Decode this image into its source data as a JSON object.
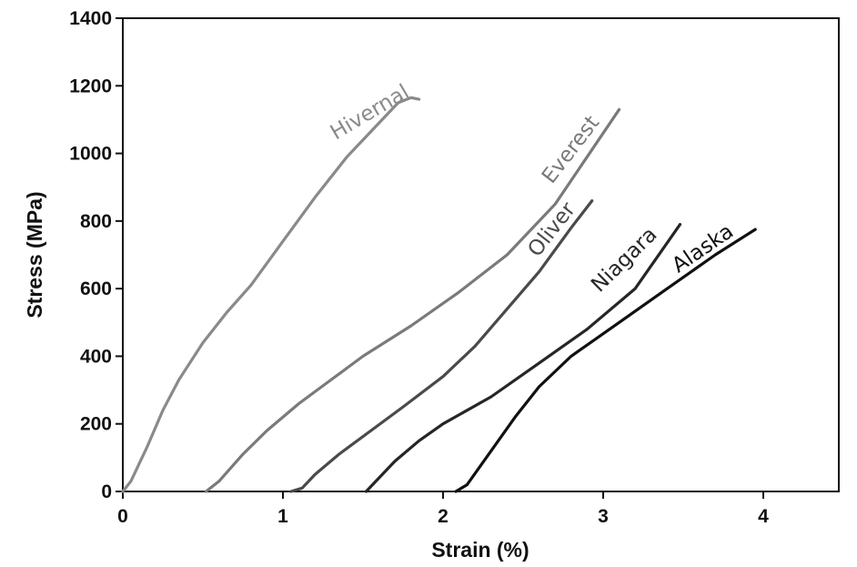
{
  "chart_data": {
    "type": "line",
    "title": "",
    "xlabel": "Strain (%)",
    "ylabel": "Stress (MPa)",
    "xlim": [
      0,
      4.5
    ],
    "ylim": [
      0,
      1400
    ],
    "xticks": [
      0,
      1,
      2,
      3,
      4
    ],
    "yticks": [
      0,
      200,
      400,
      600,
      800,
      1000,
      1200,
      1400
    ],
    "grid": false,
    "legend": "none",
    "series": [
      {
        "name": "Hivernal",
        "color": "#8a8a8a",
        "points": [
          [
            0.0,
            0
          ],
          [
            0.05,
            30
          ],
          [
            0.15,
            130
          ],
          [
            0.25,
            240
          ],
          [
            0.35,
            330
          ],
          [
            0.5,
            440
          ],
          [
            0.65,
            530
          ],
          [
            0.8,
            610
          ],
          [
            1.0,
            740
          ],
          [
            1.2,
            870
          ],
          [
            1.4,
            990
          ],
          [
            1.6,
            1090
          ],
          [
            1.72,
            1150
          ],
          [
            1.8,
            1165
          ],
          [
            1.85,
            1160
          ]
        ]
      },
      {
        "name": "Everest",
        "color": "#7a7a7a",
        "points": [
          [
            0.52,
            0
          ],
          [
            0.6,
            30
          ],
          [
            0.75,
            110
          ],
          [
            0.9,
            180
          ],
          [
            1.1,
            260
          ],
          [
            1.3,
            330
          ],
          [
            1.5,
            400
          ],
          [
            1.8,
            490
          ],
          [
            2.1,
            590
          ],
          [
            2.4,
            700
          ],
          [
            2.7,
            850
          ],
          [
            2.9,
            990
          ],
          [
            3.1,
            1130
          ]
        ]
      },
      {
        "name": "Oliver",
        "color": "#4a4a4a",
        "points": [
          [
            1.05,
            0
          ],
          [
            1.12,
            10
          ],
          [
            1.2,
            50
          ],
          [
            1.35,
            110
          ],
          [
            1.55,
            180
          ],
          [
            1.75,
            250
          ],
          [
            2.0,
            340
          ],
          [
            2.2,
            430
          ],
          [
            2.4,
            540
          ],
          [
            2.6,
            650
          ],
          [
            2.8,
            780
          ],
          [
            2.93,
            860
          ]
        ]
      },
      {
        "name": "Niagara",
        "color": "#262626",
        "points": [
          [
            1.52,
            0
          ],
          [
            1.6,
            40
          ],
          [
            1.7,
            90
          ],
          [
            1.85,
            150
          ],
          [
            2.0,
            200
          ],
          [
            2.3,
            280
          ],
          [
            2.6,
            380
          ],
          [
            2.9,
            480
          ],
          [
            3.2,
            600
          ],
          [
            3.48,
            790
          ]
        ]
      },
      {
        "name": "Alaska",
        "color": "#111111",
        "points": [
          [
            2.08,
            0
          ],
          [
            2.15,
            20
          ],
          [
            2.3,
            120
          ],
          [
            2.45,
            220
          ],
          [
            2.6,
            310
          ],
          [
            2.8,
            400
          ],
          [
            3.1,
            500
          ],
          [
            3.4,
            600
          ],
          [
            3.7,
            700
          ],
          [
            3.95,
            775
          ]
        ]
      }
    ]
  }
}
